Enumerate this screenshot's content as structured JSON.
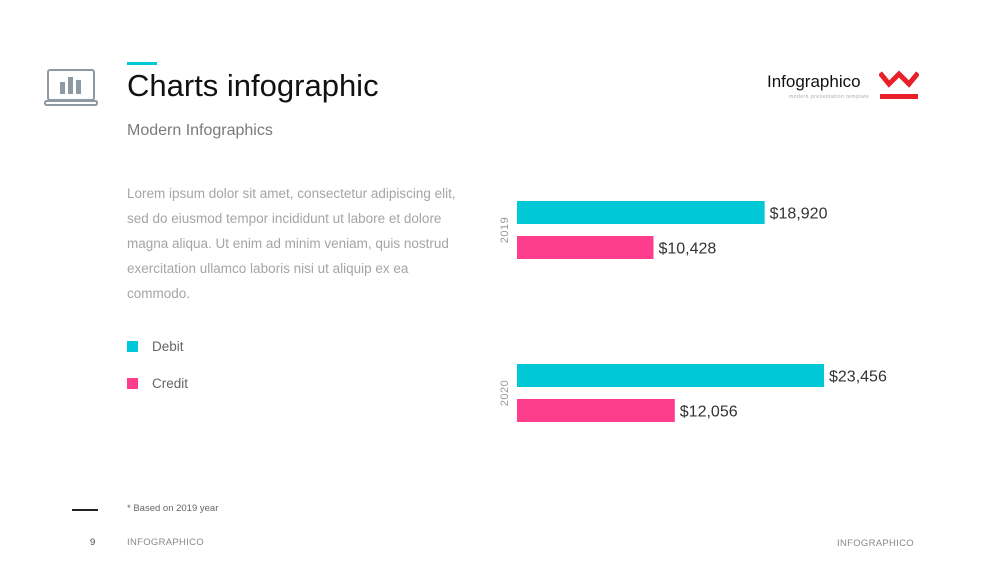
{
  "header": {
    "title": "Charts infographic",
    "subtitle": "Modern Infographics",
    "icon": "laptop-chart-icon"
  },
  "brand": {
    "name": "Infographico",
    "tagline": "modern presentation template",
    "logo": "infographico-logo",
    "logo_color": "#e8202a"
  },
  "body_text": "Lorem ipsum dolor sit amet, consectetur adipiscing elit, sed do eiusmod tempor incididunt ut labore et dolore magna aliqua. Ut enim ad minim veniam, quis nostrud exercitation ullamco laboris nisi ut aliquip ex ea commodo.",
  "legend": [
    {
      "label": "Debit",
      "color": "#00c8d7"
    },
    {
      "label": "Credit",
      "color": "#ff3d8d"
    }
  ],
  "chart_data": {
    "type": "bar",
    "orientation": "horizontal",
    "categories": [
      "2019",
      "2020"
    ],
    "series": [
      {
        "name": "Debit",
        "color": "#00c8d7",
        "values": [
          18920,
          23456
        ],
        "labels": [
          "$18,920",
          "$23,456"
        ]
      },
      {
        "name": "Credit",
        "color": "#ff3d8d",
        "values": [
          10428,
          12056
        ],
        "labels": [
          "$10,428",
          "$12,056"
        ]
      }
    ],
    "xlim": [
      0,
      23456
    ],
    "grid": false,
    "legend_position": "left"
  },
  "footnote": "* Based  on 2019 year",
  "footer": {
    "page_number": "9",
    "left": "INFOGRAPHICO",
    "right": "INFOGRAPHICO"
  }
}
